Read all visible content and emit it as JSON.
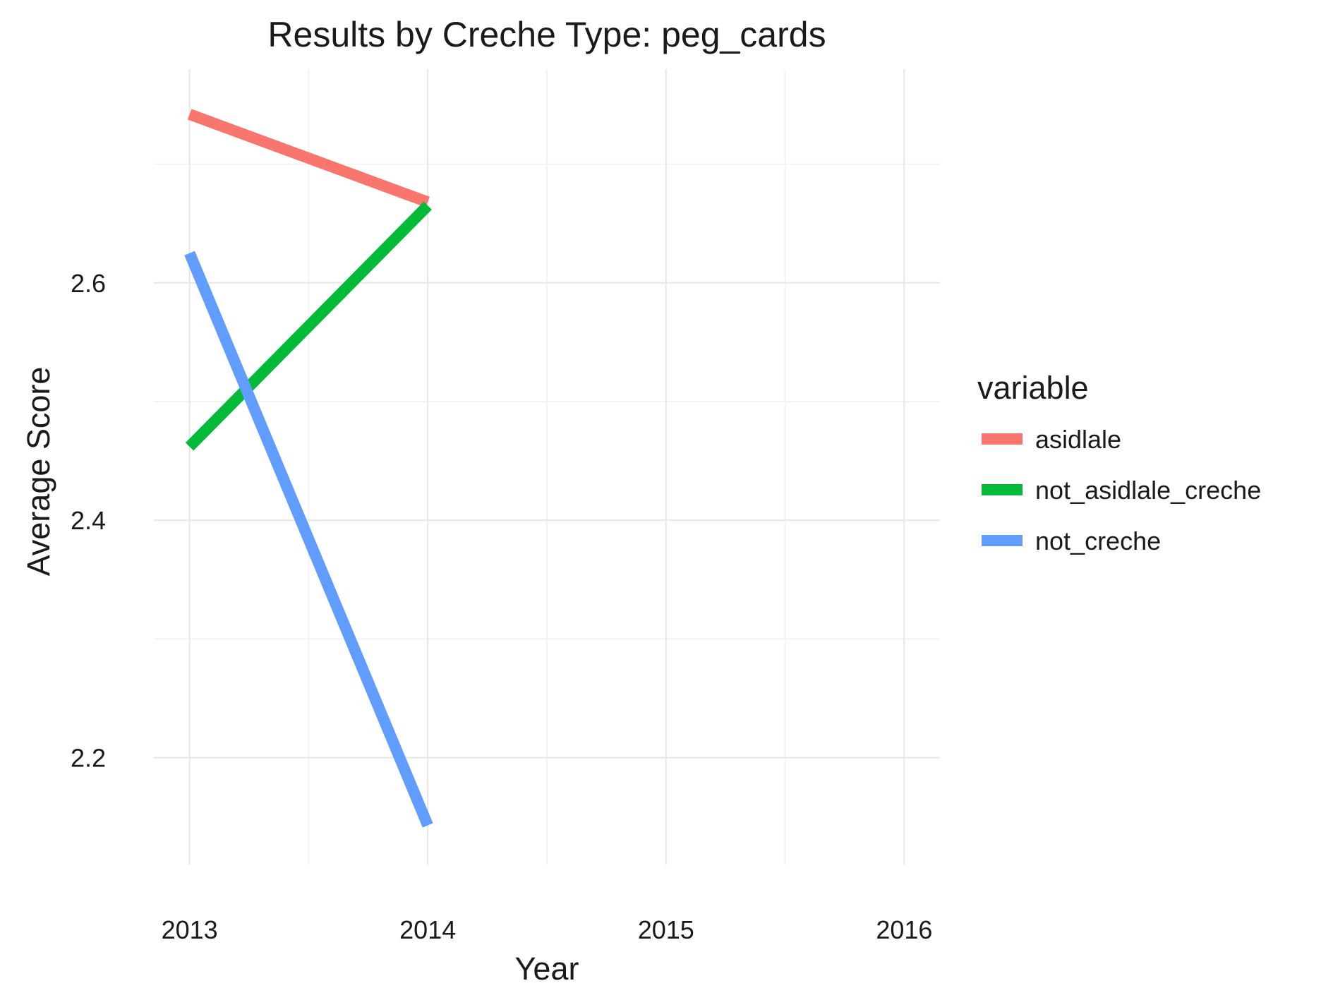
{
  "chart_data": {
    "type": "line",
    "title": "Results by Creche Type: peg_cards",
    "xlabel": "Year",
    "ylabel": "Average Score",
    "x": [
      2013,
      2014
    ],
    "xticks": [
      2013,
      2014,
      2015,
      2016
    ],
    "yticks": [
      2.2,
      2.4,
      2.6
    ],
    "xlim": [
      2012.85,
      2016.15
    ],
    "ylim": [
      2.11,
      2.78
    ],
    "grid": true,
    "legend": {
      "title": "variable",
      "placement": "right"
    },
    "series": [
      {
        "name": "asidlale",
        "color": "#F8766D",
        "values": [
          2.742,
          2.668
        ]
      },
      {
        "name": "not_asidlale_creche",
        "color": "#00BA38",
        "values": [
          2.462,
          2.665
        ]
      },
      {
        "name": "not_creche",
        "color": "#619CFF",
        "values": [
          2.625,
          2.143
        ]
      }
    ]
  }
}
